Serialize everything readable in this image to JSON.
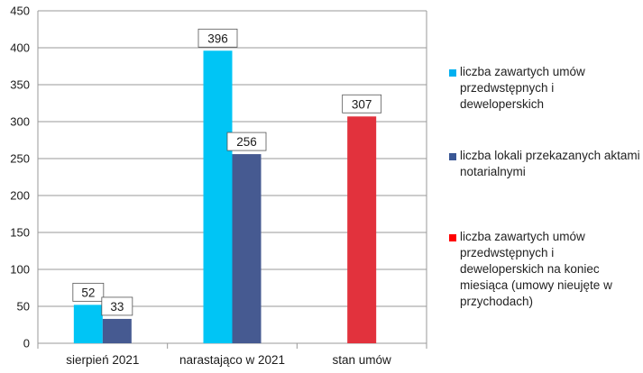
{
  "chart_data": {
    "type": "bar",
    "categories": [
      "sierpień 2021",
      "narastająco w 2021",
      "stan umów"
    ],
    "ylim": [
      0,
      450
    ],
    "yticks": [
      0,
      50,
      100,
      150,
      200,
      250,
      300,
      350,
      400,
      450
    ],
    "grid": true,
    "legend_position": "right",
    "bars": [
      {
        "series": 0,
        "category": 0,
        "value": 52
      },
      {
        "series": 1,
        "category": 0,
        "value": 33
      },
      {
        "series": 0,
        "category": 1,
        "value": 396
      },
      {
        "series": 1,
        "category": 1,
        "value": 256
      },
      {
        "series": 2,
        "category": 2,
        "value": 307
      }
    ],
    "series": [
      {
        "name": "liczba zawartych umów przedwstępnych i deweloperskich",
        "color": "#00c5f5",
        "legend_color": "#00b0f0"
      },
      {
        "name": "liczba lokali przekazanych aktami notarialnymi",
        "color": "#465a91",
        "legend_color": "#3a5795"
      },
      {
        "name": "liczba zawartych umów przedwstępnych i deweloperskich na koniec miesiąca (umowy nieujęte w przychodach)",
        "color": "#e2323d",
        "legend_color": "#ff0000"
      }
    ]
  }
}
